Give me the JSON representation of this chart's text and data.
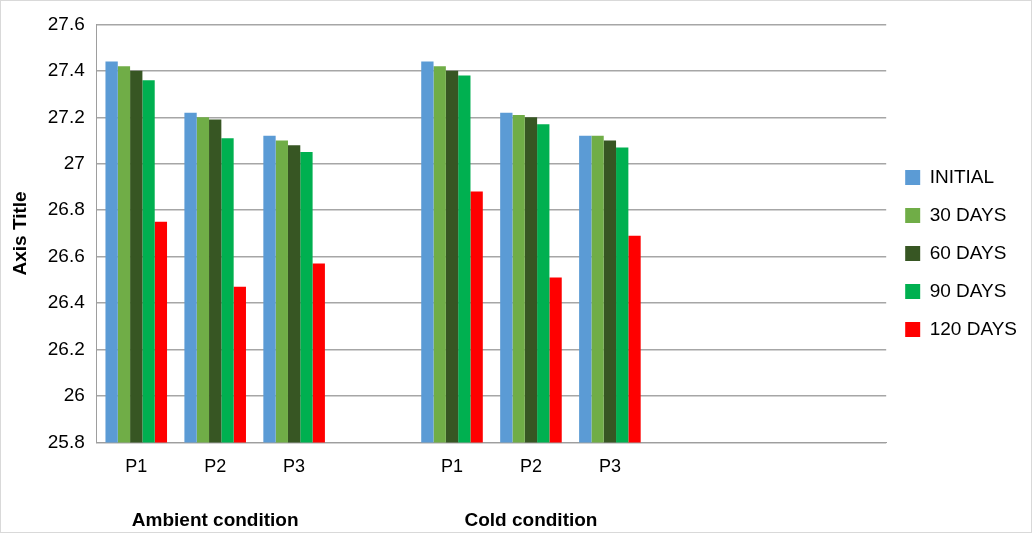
{
  "chart_data": {
    "type": "bar",
    "ylabel": "Axis Title",
    "categories": [
      "P1",
      "P2",
      "P3",
      null,
      "P1",
      "P2",
      "P3",
      null,
      null,
      null
    ],
    "series": [
      {
        "name": "INITIAL",
        "color": "#5b9bd5",
        "values": [
          27.44,
          27.22,
          27.12,
          null,
          27.44,
          27.22,
          27.12,
          null,
          null,
          null
        ]
      },
      {
        "name": "30 DAYS",
        "color": "#70ad47",
        "values": [
          27.42,
          27.2,
          27.1,
          null,
          27.42,
          27.21,
          27.12,
          null,
          null,
          null
        ]
      },
      {
        "name": "60 DAYS",
        "color": "#375623",
        "values": [
          27.4,
          27.19,
          27.08,
          null,
          27.4,
          27.2,
          27.1,
          null,
          null,
          null
        ]
      },
      {
        "name": "90 DAYS",
        "color": "#00b050",
        "values": [
          27.36,
          27.11,
          27.05,
          null,
          27.38,
          27.17,
          27.07,
          null,
          null,
          null
        ]
      },
      {
        "name": "120 DAYS",
        "color": "#ff0000",
        "values": [
          26.75,
          26.47,
          26.57,
          null,
          26.88,
          26.51,
          26.69,
          null,
          null,
          null
        ]
      }
    ],
    "annotations": [
      "Ambient condition",
      "Cold condition"
    ],
    "ylim": [
      25.8,
      27.6
    ],
    "yticks": [
      25.8,
      26,
      26.2,
      26.4,
      26.6,
      26.8,
      27,
      27.2,
      27.4,
      27.6
    ],
    "grid": "y",
    "legend": "right"
  }
}
